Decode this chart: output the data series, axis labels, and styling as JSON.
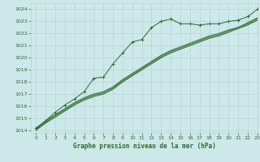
{
  "title": "Graphe pression niveau de la mer (hPa)",
  "bg_color": "#cce8e8",
  "grid_color": "#b8d4d4",
  "line_color": "#2d6a2d",
  "xlim": [
    -0.5,
    23
  ],
  "ylim": [
    1013.8,
    1024.5
  ],
  "yticks": [
    1014,
    1015,
    1016,
    1017,
    1018,
    1019,
    1020,
    1021,
    1022,
    1023,
    1024
  ],
  "xticks": [
    0,
    1,
    2,
    3,
    4,
    5,
    6,
    7,
    8,
    9,
    10,
    11,
    12,
    13,
    14,
    15,
    16,
    17,
    18,
    19,
    20,
    21,
    22,
    23
  ],
  "line1_x": [
    0,
    1,
    2,
    3,
    4,
    5,
    6,
    7,
    8,
    9,
    10,
    11,
    12,
    13,
    14,
    15,
    16,
    17,
    18,
    19,
    20,
    21,
    22,
    23
  ],
  "line1": [
    1014.2,
    1014.8,
    1015.5,
    1016.1,
    1016.6,
    1017.2,
    1018.3,
    1018.4,
    1019.5,
    1020.4,
    1021.3,
    1021.5,
    1022.5,
    1023.0,
    1023.2,
    1022.8,
    1022.8,
    1022.7,
    1022.8,
    1022.8,
    1023.0,
    1023.1,
    1023.4,
    1024.0
  ],
  "line2_x": [
    0,
    1,
    2,
    3,
    4,
    5,
    6,
    7,
    8,
    9,
    10,
    11,
    12,
    13,
    14,
    15,
    16,
    17,
    18,
    19,
    20,
    21,
    22,
    23
  ],
  "line2": [
    1014.1,
    1014.8,
    1015.3,
    1015.8,
    1016.3,
    1016.7,
    1017.0,
    1017.2,
    1017.6,
    1018.2,
    1018.7,
    1019.2,
    1019.7,
    1020.2,
    1020.6,
    1020.9,
    1021.2,
    1021.5,
    1021.8,
    1022.0,
    1022.3,
    1022.5,
    1022.9,
    1023.3
  ],
  "line3_x": [
    0,
    1,
    2,
    3,
    4,
    5,
    6,
    7,
    8,
    9,
    10,
    11,
    12,
    13,
    14,
    15,
    16,
    17,
    18,
    19,
    20,
    21,
    22,
    23
  ],
  "line3": [
    1014.1,
    1014.7,
    1015.2,
    1015.7,
    1016.2,
    1016.6,
    1016.9,
    1017.1,
    1017.5,
    1018.1,
    1018.6,
    1019.1,
    1019.6,
    1020.1,
    1020.5,
    1020.8,
    1021.1,
    1021.4,
    1021.7,
    1021.9,
    1022.2,
    1022.5,
    1022.8,
    1023.2
  ],
  "line4_x": [
    0,
    1,
    2,
    3,
    4,
    5,
    6,
    7,
    8,
    9,
    10,
    11,
    12,
    13,
    14,
    15,
    16,
    17,
    18,
    19,
    20,
    21,
    22,
    23
  ],
  "line4": [
    1014.0,
    1014.6,
    1015.1,
    1015.6,
    1016.1,
    1016.5,
    1016.8,
    1017.0,
    1017.4,
    1018.0,
    1018.5,
    1019.0,
    1019.5,
    1020.0,
    1020.4,
    1020.7,
    1021.0,
    1021.3,
    1021.6,
    1021.8,
    1022.1,
    1022.4,
    1022.7,
    1023.1
  ]
}
